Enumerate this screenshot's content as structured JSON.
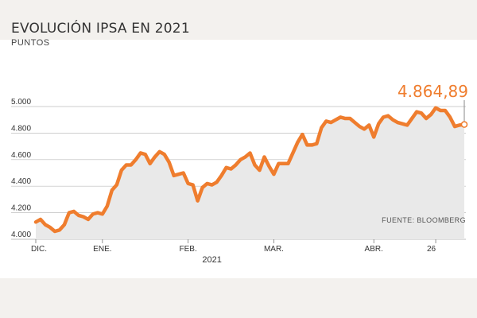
{
  "header": {
    "title": "EVOLUCIÓN IPSA EN 2021",
    "subtitle": "PUNTOS"
  },
  "footer": {
    "source": "FUENTE: BLOOMBERG"
  },
  "colors": {
    "line": "#ef7d2e",
    "area": "#e9e9e9",
    "grid": "#bdbdbd",
    "background": "#ffffff"
  },
  "chart_data": {
    "type": "area",
    "title": "EVOLUCIÓN IPSA EN 2021",
    "ylabel": "PUNTOS",
    "xlabel": "2021",
    "ylim": [
      4000,
      5000
    ],
    "y_ticks": [
      {
        "value": 4000,
        "label": "4.000"
      },
      {
        "value": 4200,
        "label": "4.200"
      },
      {
        "value": 4400,
        "label": "4.400"
      },
      {
        "value": 4600,
        "label": "4.600"
      },
      {
        "value": 4800,
        "label": "4.800"
      },
      {
        "value": 5000,
        "label": "5.000"
      }
    ],
    "x_ticks": [
      {
        "index": 0,
        "label": "DIC."
      },
      {
        "index": 14,
        "label": "ENE."
      },
      {
        "index": 32,
        "label": "FEB."
      },
      {
        "index": 50,
        "label": "MAR."
      },
      {
        "index": 71,
        "label": "ABR."
      },
      {
        "index": 84,
        "label": "26"
      }
    ],
    "year_label": "2021",
    "last_value_label": "4.864,89",
    "grid": true,
    "series": [
      {
        "values": [
          4130,
          4150,
          4110,
          4090,
          4060,
          4070,
          4110,
          4200,
          4210,
          4180,
          4170,
          4150,
          4190,
          4200,
          4190,
          4250,
          4370,
          4410,
          4520,
          4560,
          4560,
          4600,
          4650,
          4640,
          4570,
          4620,
          4660,
          4640,
          4580,
          4480,
          4490,
          4500,
          4420,
          4410,
          4290,
          4390,
          4420,
          4410,
          4430,
          4480,
          4540,
          4530,
          4560,
          4600,
          4620,
          4650,
          4560,
          4520,
          4620,
          4550,
          4490,
          4570,
          4570,
          4570,
          4650,
          4730,
          4790,
          4710,
          4710,
          4720,
          4840,
          4890,
          4880,
          4900,
          4920,
          4910,
          4910,
          4880,
          4850,
          4830,
          4860,
          4770,
          4870,
          4920,
          4930,
          4900,
          4880,
          4870,
          4860,
          4910,
          4960,
          4950,
          4910,
          4940,
          4990,
          4970,
          4970,
          4920,
          4850,
          4860,
          4864.89
        ]
      }
    ]
  }
}
